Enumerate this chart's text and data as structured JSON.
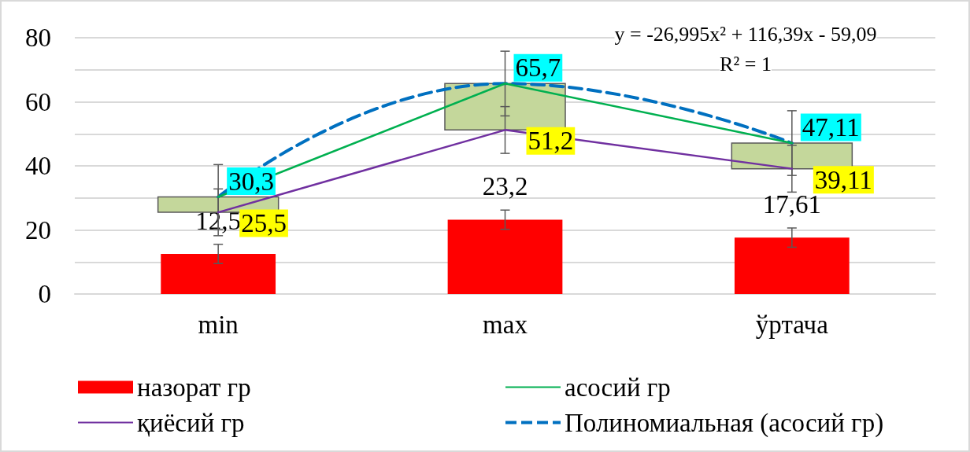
{
  "chart_data": {
    "type": "bar",
    "categories": [
      "min",
      "max",
      "ўртача"
    ],
    "series": [
      {
        "name": "назорат гр",
        "color": "#ff0000",
        "values": [
          12.5,
          23.2,
          17.61
        ],
        "errors": [
          3,
          3,
          3
        ],
        "value_labels": [
          "12,5",
          "23,2",
          "17,61"
        ]
      },
      {
        "name": "асосий гр",
        "type": "line",
        "color": "#00b050",
        "values": [
          30.3,
          65.7,
          47.11
        ],
        "errors": [
          10.1,
          10.1,
          10.1
        ],
        "value_labels": [
          "30,3",
          "65,7",
          "47,11"
        ]
      },
      {
        "name": "қиёсий гр",
        "type": "line",
        "color": "#7030a0",
        "values": [
          25.5,
          51.2,
          39.11
        ],
        "errors": [
          7.3,
          7.3,
          7.3
        ],
        "value_labels": [
          "25,5",
          "51,2",
          "39,11"
        ]
      },
      {
        "name": "Полиномиальная (асосий гр)",
        "type": "line",
        "color": "#0070c0",
        "line_style": "dashed",
        "values": [
          30.3,
          65.7,
          47.1
        ]
      },
      {
        "color": "#c4d79b",
        "base": [
          25.5,
          51.2,
          39.11
        ],
        "values": [
          4.8,
          14.5,
          8
        ]
      }
    ],
    "ylim": [
      0,
      80
    ],
    "yticks": [
      0,
      {
        "value": 10,
        "label": null
      },
      20,
      {
        "value": 30,
        "label": null
      },
      40,
      {
        "value": 50,
        "label": null
      },
      60,
      {
        "value": 70,
        "label": null
      },
      80
    ],
    "grid": "y",
    "legend": "bottom",
    "marker": "none",
    "annotations": [
      "y = -26,995x² + 116,39x - 59,09",
      "R² = 1"
    ]
  }
}
